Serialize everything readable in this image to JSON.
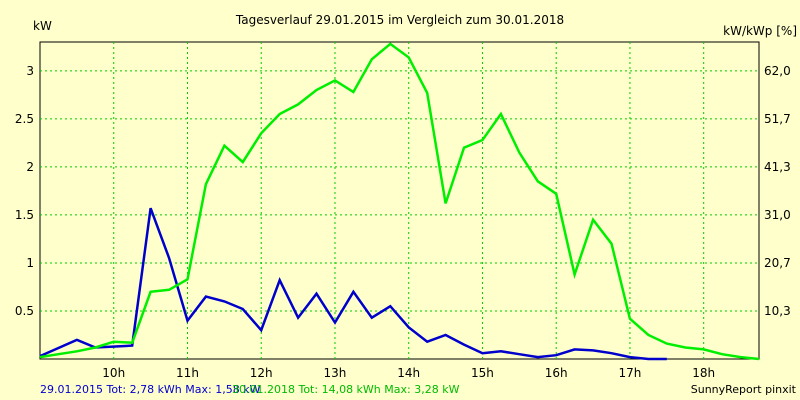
{
  "chart_data": {
    "type": "line",
    "title": "Tagesverlauf 29.01.2015 im Vergleich zum 30.01.2018",
    "ylabel_left": "kW",
    "ylabel_right": "kW/kWp [%]",
    "grid": true,
    "x_ticks": [
      {
        "label": "10h",
        "value": 10
      },
      {
        "label": "11h",
        "value": 11
      },
      {
        "label": "12h",
        "value": 12
      },
      {
        "label": "13h",
        "value": 13
      },
      {
        "label": "14h",
        "value": 14
      },
      {
        "label": "15h",
        "value": 15
      },
      {
        "label": "16h",
        "value": 16
      },
      {
        "label": "17h",
        "value": 17
      },
      {
        "label": "18h",
        "value": 18
      }
    ],
    "xlim": [
      9.0,
      18.75
    ],
    "ylim_left": [
      0,
      3.3
    ],
    "y_left_ticks": [
      {
        "label": "0.5",
        "value": 0.5
      },
      {
        "label": "1",
        "value": 1
      },
      {
        "label": "1.5",
        "value": 1.5
      },
      {
        "label": "2",
        "value": 2
      },
      {
        "label": "2.5",
        "value": 2.5
      },
      {
        "label": "3",
        "value": 3
      }
    ],
    "y_right_ticks": [
      {
        "label": "10,3",
        "value": 0.5
      },
      {
        "label": "20,7",
        "value": 1
      },
      {
        "label": "31,0",
        "value": 1.5
      },
      {
        "label": "41,3",
        "value": 2
      },
      {
        "label": "51,7",
        "value": 2.5
      },
      {
        "label": "62,0",
        "value": 3
      }
    ],
    "series": [
      {
        "name": "29.01.2015",
        "color": "#0000cc",
        "points": [
          [
            9.0,
            0.03
          ],
          [
            9.5,
            0.2
          ],
          [
            9.75,
            0.12
          ],
          [
            10.25,
            0.14
          ],
          [
            10.5,
            1.57
          ],
          [
            10.75,
            1.05
          ],
          [
            11.0,
            0.4
          ],
          [
            11.25,
            0.65
          ],
          [
            11.5,
            0.6
          ],
          [
            11.75,
            0.52
          ],
          [
            12.0,
            0.3
          ],
          [
            12.25,
            0.82
          ],
          [
            12.5,
            0.43
          ],
          [
            12.75,
            0.68
          ],
          [
            13.0,
            0.38
          ],
          [
            13.25,
            0.7
          ],
          [
            13.5,
            0.43
          ],
          [
            13.75,
            0.55
          ],
          [
            14.0,
            0.33
          ],
          [
            14.25,
            0.18
          ],
          [
            14.5,
            0.25
          ],
          [
            14.75,
            0.15
          ],
          [
            15.0,
            0.06
          ],
          [
            15.25,
            0.08
          ],
          [
            15.5,
            0.05
          ],
          [
            15.75,
            0.02
          ],
          [
            16.0,
            0.04
          ],
          [
            16.25,
            0.1
          ],
          [
            16.5,
            0.09
          ],
          [
            16.75,
            0.06
          ],
          [
            17.0,
            0.02
          ],
          [
            17.25,
            0.0
          ],
          [
            17.5,
            0.0
          ]
        ]
      },
      {
        "name": "30.01.2018",
        "color": "#00ee00",
        "points": [
          [
            9.0,
            0.02
          ],
          [
            9.25,
            0.05
          ],
          [
            9.5,
            0.08
          ],
          [
            9.75,
            0.12
          ],
          [
            10.0,
            0.18
          ],
          [
            10.25,
            0.17
          ],
          [
            10.5,
            0.7
          ],
          [
            10.75,
            0.72
          ],
          [
            11.0,
            0.83
          ],
          [
            11.25,
            1.82
          ],
          [
            11.5,
            2.22
          ],
          [
            11.75,
            2.05
          ],
          [
            12.0,
            2.35
          ],
          [
            12.25,
            2.55
          ],
          [
            12.5,
            2.65
          ],
          [
            12.75,
            2.8
          ],
          [
            13.0,
            2.9
          ],
          [
            13.25,
            2.78
          ],
          [
            13.5,
            3.12
          ],
          [
            13.75,
            3.28
          ],
          [
            14.0,
            3.14
          ],
          [
            14.25,
            2.77
          ],
          [
            14.5,
            1.62
          ],
          [
            14.75,
            2.2
          ],
          [
            15.0,
            2.28
          ],
          [
            15.25,
            2.55
          ],
          [
            15.5,
            2.15
          ],
          [
            15.75,
            1.85
          ],
          [
            16.0,
            1.72
          ],
          [
            16.25,
            0.88
          ],
          [
            16.5,
            1.45
          ],
          [
            16.75,
            1.2
          ],
          [
            17.0,
            0.42
          ],
          [
            17.25,
            0.25
          ],
          [
            17.5,
            0.16
          ],
          [
            17.75,
            0.12
          ],
          [
            18.0,
            0.1
          ],
          [
            18.25,
            0.05
          ],
          [
            18.5,
            0.02
          ],
          [
            18.75,
            0.0
          ]
        ]
      }
    ],
    "footer": {
      "series1_text": "29.01.2015 Tot: 2,78 kWh Max: 1,58 kW",
      "series2_text": "30.01.2018 Tot: 14,08 kWh Max: 3,28 kW",
      "credit": "SunnyReport pinxit"
    }
  }
}
